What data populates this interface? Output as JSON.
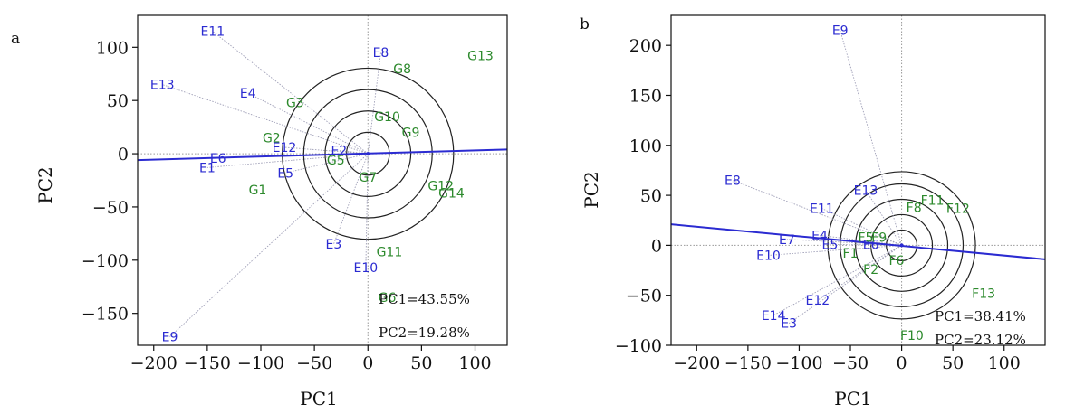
{
  "chart_data": [
    {
      "type": "scatter",
      "panel_label": "a",
      "xlabel": "PC1",
      "ylabel": "PC2",
      "xlim": [
        -215,
        130
      ],
      "ylim": [
        -180,
        130
      ],
      "xticks": [
        -200,
        -150,
        -100,
        -50,
        0,
        50,
        100
      ],
      "yticks": [
        -150,
        -100,
        -50,
        0,
        50,
        100
      ],
      "grid": false,
      "axis_line": {
        "x1": -215,
        "y1": -6,
        "x2": 130,
        "y2": 4,
        "color": "#2b2bd1"
      },
      "circle_radii": [
        20,
        40,
        60,
        80
      ],
      "annotations": [
        "PC1=43.55%",
        "PC2=19.28%"
      ],
      "series": [
        {
          "color": "#2b2bd1",
          "points": [
            {
              "label": "E11",
              "x": -145,
              "y": 115
            },
            {
              "label": "E13",
              "x": -192,
              "y": 65
            },
            {
              "label": "E4",
              "x": -112,
              "y": 57
            },
            {
              "label": "E8",
              "x": 12,
              "y": 95
            },
            {
              "label": "E12",
              "x": -78,
              "y": 6
            },
            {
              "label": "E2",
              "x": -27,
              "y": 3
            },
            {
              "label": "E6",
              "x": -140,
              "y": -4
            },
            {
              "label": "E1",
              "x": -150,
              "y": -13
            },
            {
              "label": "E5",
              "x": -77,
              "y": -18
            },
            {
              "label": "E3",
              "x": -32,
              "y": -85
            },
            {
              "label": "E10",
              "x": -2,
              "y": -107
            },
            {
              "label": "E9",
              "x": -185,
              "y": -172
            }
          ]
        },
        {
          "color": "#2d8a2d",
          "points": [
            {
              "label": "G13",
              "x": 105,
              "y": 92
            },
            {
              "label": "G8",
              "x": 32,
              "y": 80
            },
            {
              "label": "G3",
              "x": -68,
              "y": 48
            },
            {
              "label": "G10",
              "x": 18,
              "y": 35
            },
            {
              "label": "G2",
              "x": -90,
              "y": 15
            },
            {
              "label": "G9",
              "x": 40,
              "y": 20
            },
            {
              "label": "G5",
              "x": -30,
              "y": -6
            },
            {
              "label": "G7",
              "x": 0,
              "y": -22
            },
            {
              "label": "G12",
              "x": 68,
              "y": -30
            },
            {
              "label": "G14",
              "x": 78,
              "y": -37
            },
            {
              "label": "G1",
              "x": -103,
              "y": -34
            },
            {
              "label": "G11",
              "x": 20,
              "y": -92
            },
            {
              "label": "G6",
              "x": 18,
              "y": -135
            }
          ]
        }
      ]
    },
    {
      "type": "scatter",
      "panel_label": "b",
      "xlabel": "PC1",
      "ylabel": "PC2",
      "xlim": [
        -225,
        140
      ],
      "ylim": [
        -100,
        230
      ],
      "xticks": [
        -200,
        -150,
        -100,
        -50,
        0,
        50,
        100
      ],
      "yticks": [
        -100,
        -50,
        0,
        50,
        100,
        150,
        200
      ],
      "grid": false,
      "axis_line": {
        "x1": -225,
        "y1": 21,
        "x2": 140,
        "y2": -14,
        "color": "#2b2bd1"
      },
      "circle_radii": [
        15,
        30,
        45,
        60,
        72
      ],
      "annotations": [
        "PC1=38.41%",
        "PC2=23.12%"
      ],
      "series": [
        {
          "color": "#2b2bd1",
          "points": [
            {
              "label": "E9",
              "x": -60,
              "y": 215
            },
            {
              "label": "E8",
              "x": -165,
              "y": 65
            },
            {
              "label": "E13",
              "x": -35,
              "y": 55
            },
            {
              "label": "E11",
              "x": -78,
              "y": 37
            },
            {
              "label": "E4",
              "x": -80,
              "y": 10
            },
            {
              "label": "E7",
              "x": -112,
              "y": 6
            },
            {
              "label": "E5",
              "x": -70,
              "y": 1
            },
            {
              "label": "E6",
              "x": -30,
              "y": 1
            },
            {
              "label": "E10",
              "x": -130,
              "y": -10
            },
            {
              "label": "E12",
              "x": -82,
              "y": -55
            },
            {
              "label": "E14",
              "x": -125,
              "y": -70
            },
            {
              "label": "E3",
              "x": -110,
              "y": -78
            }
          ]
        },
        {
          "color": "#2d8a2d",
          "points": [
            {
              "label": "F11",
              "x": 30,
              "y": 45
            },
            {
              "label": "F8",
              "x": 12,
              "y": 38
            },
            {
              "label": "F12",
              "x": 55,
              "y": 37
            },
            {
              "label": "F5",
              "x": -35,
              "y": 8
            },
            {
              "label": "F9",
              "x": -22,
              "y": 8
            },
            {
              "label": "F1",
              "x": -50,
              "y": -8
            },
            {
              "label": "F6",
              "x": -5,
              "y": -15
            },
            {
              "label": "F2",
              "x": -30,
              "y": -24
            },
            {
              "label": "F13",
              "x": 80,
              "y": -48
            },
            {
              "label": "F10",
              "x": 10,
              "y": -90
            }
          ]
        }
      ]
    }
  ]
}
